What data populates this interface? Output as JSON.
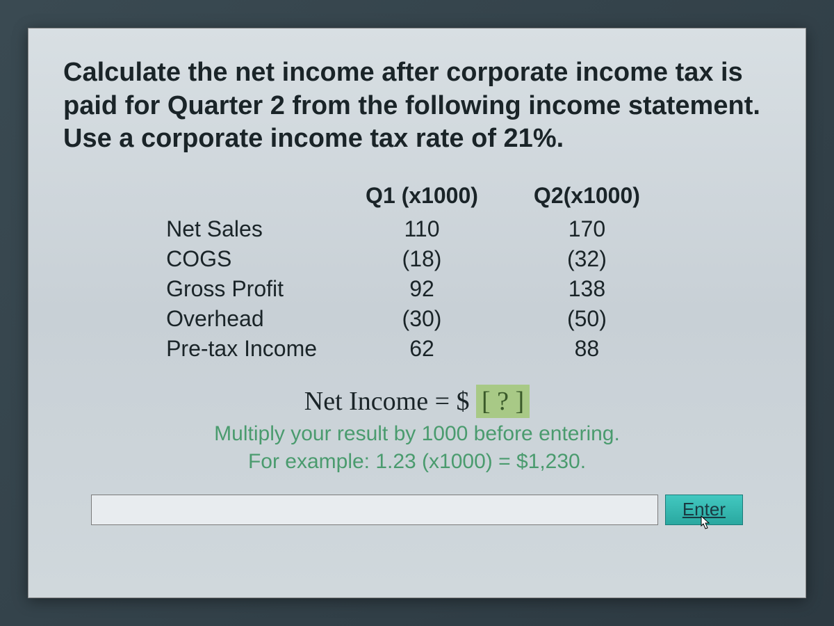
{
  "question": "Calculate the net income after corporate income tax is paid for Quarter 2 from the following income statement. Use a corporate income tax rate of 21%.",
  "table": {
    "headers": [
      "",
      "Q1 (x1000)",
      "Q2(x1000)"
    ],
    "rows": [
      {
        "label": "Net Sales",
        "q1": "110",
        "q2": "170"
      },
      {
        "label": "COGS",
        "q1": "(18)",
        "q2": "(32)"
      },
      {
        "label": "Gross Profit",
        "q1": "92",
        "q2": "138"
      },
      {
        "label": "Overhead",
        "q1": "(30)",
        "q2": "(50)"
      },
      {
        "label": "Pre-tax Income",
        "q1": "62",
        "q2": "88"
      }
    ]
  },
  "answer": {
    "prompt_prefix": "Net Income = $ ",
    "placeholder": "[ ? ]",
    "hint1": "Multiply your result by 1000 before entering.",
    "hint2": "For example: 1.23 (x1000) =  $1,230."
  },
  "input": {
    "value": "",
    "enter_label": "Enter"
  },
  "colors": {
    "card_bg": "#d0d8dc",
    "text": "#1a2428",
    "hint": "#4a9b6e",
    "placeholder_bg": "#a8c986",
    "button_bg": "#2aa8a0"
  }
}
